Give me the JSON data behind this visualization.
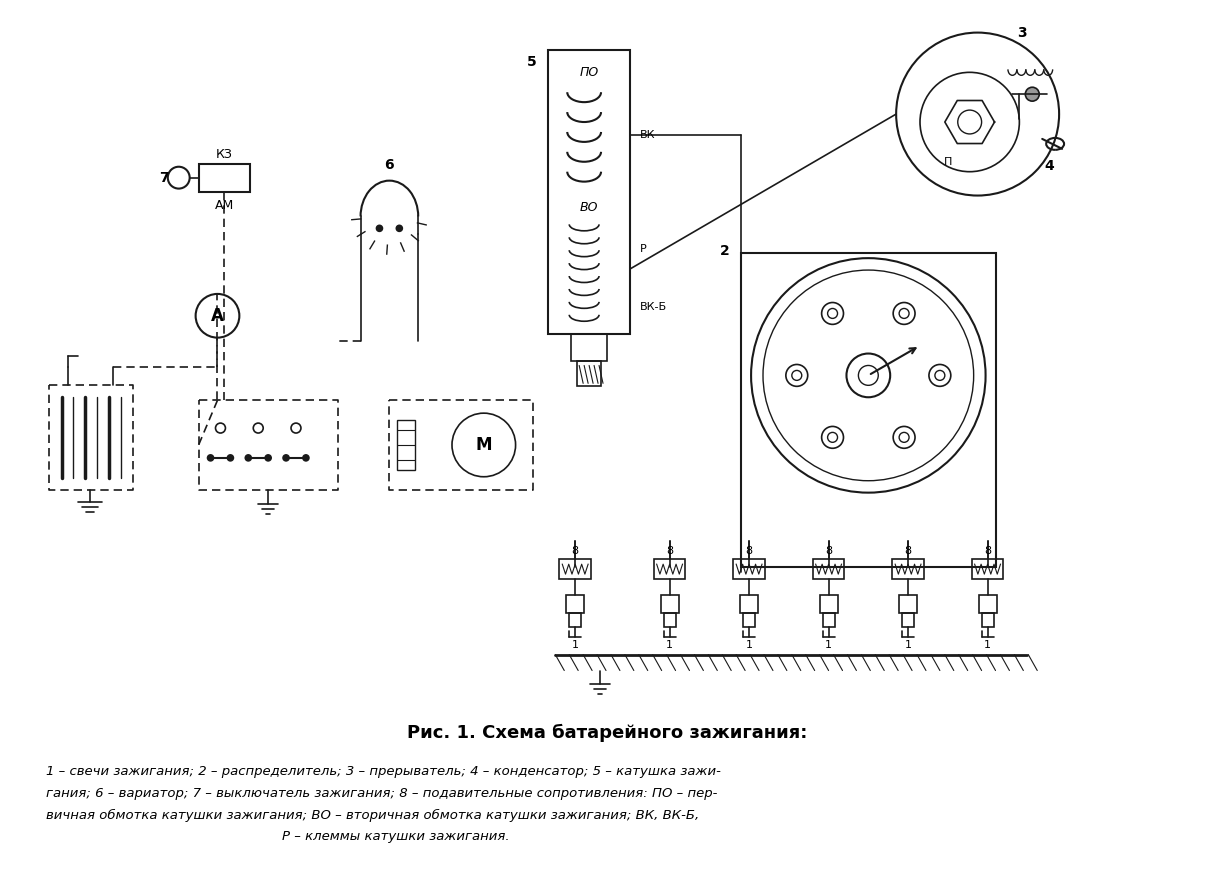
{
  "title": "Рис. 1. Схема батарейного зажигания:",
  "caption_line1": "1 – свечи зажигания; 2 – распределитель; 3 – прерыватель; 4 – конденсатор; 5 – катушка зажи-",
  "caption_line2": "гания; 6 – вариатор; 7 – выключатель зажигания; 8 – подавительные сопротивления: ПО – пер-",
  "caption_line3": "вичная обмотка катушки зажигания; ВО – вторичная обмотка катушки зажигания; ВК, ВК-Б,",
  "caption_line4": "Р – клеммы катушки зажигания.",
  "bg_color": "#ffffff",
  "diagram_color": "#1a1a1a",
  "text_color": "#000000"
}
